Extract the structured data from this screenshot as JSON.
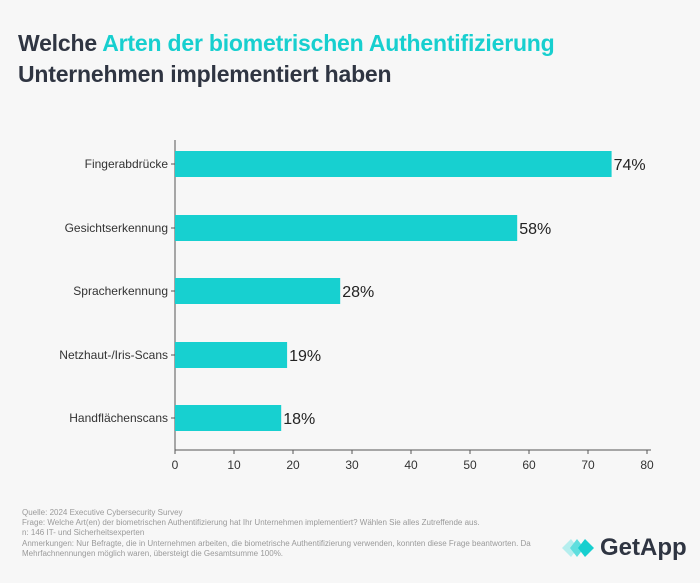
{
  "title": {
    "part1": "Welche ",
    "highlight": "Arten der biometrischen Authentifizierung",
    "part2": "Unternehmen implementiert haben"
  },
  "colors": {
    "bar": "#17d0d0",
    "highlight": "#17cfcf",
    "title": "#2f3542"
  },
  "chart_data": {
    "type": "bar",
    "orientation": "horizontal",
    "categories": [
      "Fingerabdrücke",
      "Gesichtserkennung",
      "Spracherkennung",
      "Netzhaut-/Iris-Scans",
      "Handflächenscans"
    ],
    "values": [
      74,
      58,
      28,
      19,
      18
    ],
    "value_labels": [
      "74%",
      "58%",
      "28%",
      "19%",
      "18%"
    ],
    "xlim": [
      0,
      80
    ],
    "xticks": [
      "0",
      "10",
      "20",
      "30",
      "40",
      "50",
      "60",
      "70",
      "80"
    ],
    "grid": false
  },
  "notes": [
    "Quelle: 2024 Executive Cybersecurity Survey",
    "Frage:  Welche Art(en) der biometrischen Authentifizierung hat Ihr Unternehmen implementiert? Wählen Sie alles Zutreffende aus.",
    "n: 146 IT- und Sicherheitsexperten",
    "Anmerkungen: Nur Befragte, die in Unternehmen arbeiten, die biometrische Authentifizierung verwenden, konnten diese Frage beantworten. Da Mehrfachnennungen möglich waren, übersteigt die Gesamtsumme 100%."
  ],
  "logo": {
    "text": "GetApp"
  }
}
